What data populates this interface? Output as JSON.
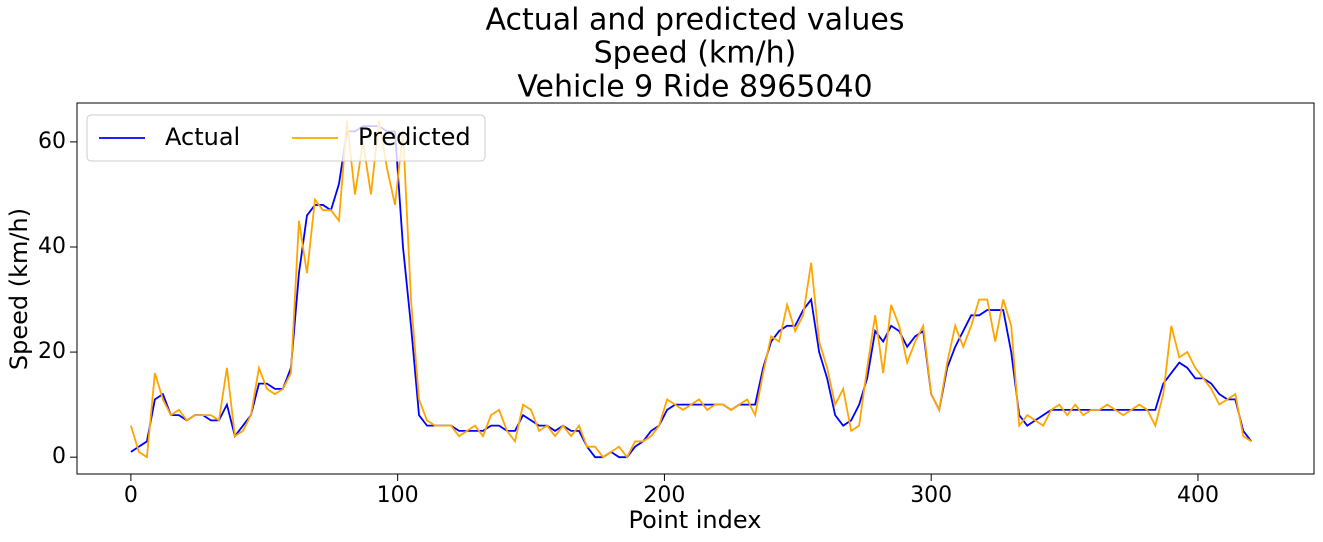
{
  "chart_data": {
    "type": "line",
    "title": [
      "Actual and predicted values",
      "Speed (km/h)",
      "Vehicle 9 Ride 8965040"
    ],
    "x_label": "Point index",
    "y_label": "Speed (km/h)",
    "x": [
      0,
      3,
      6,
      9,
      12,
      15,
      18,
      21,
      24,
      27,
      30,
      33,
      36,
      39,
      42,
      45,
      48,
      51,
      54,
      57,
      60,
      63,
      66,
      69,
      72,
      75,
      78,
      81,
      84,
      87,
      90,
      93,
      96,
      99,
      102,
      105,
      108,
      111,
      114,
      117,
      120,
      123,
      126,
      129,
      132,
      135,
      138,
      141,
      144,
      147,
      150,
      153,
      156,
      159,
      162,
      165,
      168,
      171,
      174,
      177,
      180,
      183,
      186,
      189,
      192,
      195,
      198,
      201,
      204,
      207,
      210,
      213,
      216,
      219,
      222,
      225,
      228,
      231,
      234,
      237,
      240,
      243,
      246,
      249,
      252,
      255,
      258,
      261,
      264,
      267,
      270,
      273,
      276,
      279,
      282,
      285,
      288,
      291,
      294,
      297,
      300,
      303,
      306,
      309,
      312,
      315,
      318,
      321,
      324,
      327,
      330,
      333,
      336,
      339,
      342,
      345,
      348,
      351,
      354,
      357,
      360,
      363,
      366,
      369,
      372,
      375,
      378,
      381,
      384,
      387,
      390,
      393,
      396,
      399,
      402,
      405,
      408,
      411,
      414,
      417,
      420
    ],
    "series": [
      {
        "name": "Actual",
        "color": "#0000ff",
        "values": [
          1,
          2,
          3,
          11,
          12,
          8,
          8,
          7,
          8,
          8,
          7,
          7,
          10,
          4,
          6,
          8,
          14,
          14,
          13,
          13,
          17,
          35,
          46,
          48,
          48,
          47,
          52,
          62,
          62,
          63,
          63,
          63,
          62,
          62,
          40,
          25,
          8,
          6,
          6,
          6,
          6,
          5,
          5,
          5,
          5,
          6,
          6,
          5,
          5,
          8,
          7,
          6,
          6,
          5,
          6,
          5,
          5,
          2,
          0,
          0,
          1,
          0,
          0,
          2,
          3,
          5,
          6,
          9,
          10,
          10,
          10,
          10,
          10,
          10,
          10,
          9,
          10,
          10,
          10,
          17,
          22,
          24,
          25,
          25,
          28,
          30,
          20,
          15,
          8,
          6,
          7,
          10,
          15,
          24,
          22,
          25,
          24,
          21,
          23,
          24,
          12,
          9,
          17,
          21,
          24,
          27,
          27,
          28,
          28,
          28,
          20,
          8,
          6,
          7,
          8,
          9,
          9,
          9,
          9,
          9,
          9,
          9,
          9,
          9,
          9,
          9,
          9,
          9,
          9,
          14,
          16,
          18,
          17,
          15,
          15,
          14,
          12,
          11,
          11,
          5,
          3
        ]
      },
      {
        "name": "Predicted",
        "color": "#ffa500",
        "values": [
          6,
          1,
          0,
          16,
          11,
          8,
          9,
          7,
          8,
          8,
          8,
          7,
          17,
          4,
          5,
          8,
          17,
          13,
          12,
          13,
          16,
          45,
          35,
          49,
          47,
          47,
          45,
          64,
          50,
          60,
          50,
          64,
          55,
          48,
          62,
          30,
          11,
          7,
          6,
          6,
          6,
          4,
          5,
          6,
          4,
          8,
          9,
          5,
          3,
          10,
          9,
          5,
          6,
          4,
          6,
          4,
          6,
          2,
          2,
          0,
          1,
          2,
          0,
          3,
          3,
          4,
          6,
          11,
          10,
          9,
          10,
          11,
          9,
          10,
          10,
          9,
          10,
          11,
          8,
          16,
          23,
          22,
          29,
          24,
          27,
          37,
          22,
          17,
          10,
          13,
          5,
          6,
          17,
          27,
          16,
          29,
          25,
          18,
          22,
          25,
          12,
          9,
          18,
          25,
          21,
          25,
          30,
          30,
          22,
          30,
          25,
          6,
          8,
          7,
          6,
          9,
          10,
          8,
          10,
          8,
          9,
          9,
          10,
          9,
          8,
          9,
          10,
          9,
          6,
          12,
          25,
          19,
          20,
          17,
          15,
          13,
          10,
          11,
          12,
          4,
          3
        ]
      }
    ],
    "xlim": [
      -20.2,
      443.5
    ],
    "xticks": [
      0,
      100,
      200,
      300,
      400
    ],
    "ylim": [
      -3.2,
      67.4
    ],
    "yticks": [
      0,
      20,
      40,
      60
    ],
    "legend": "upper left"
  }
}
